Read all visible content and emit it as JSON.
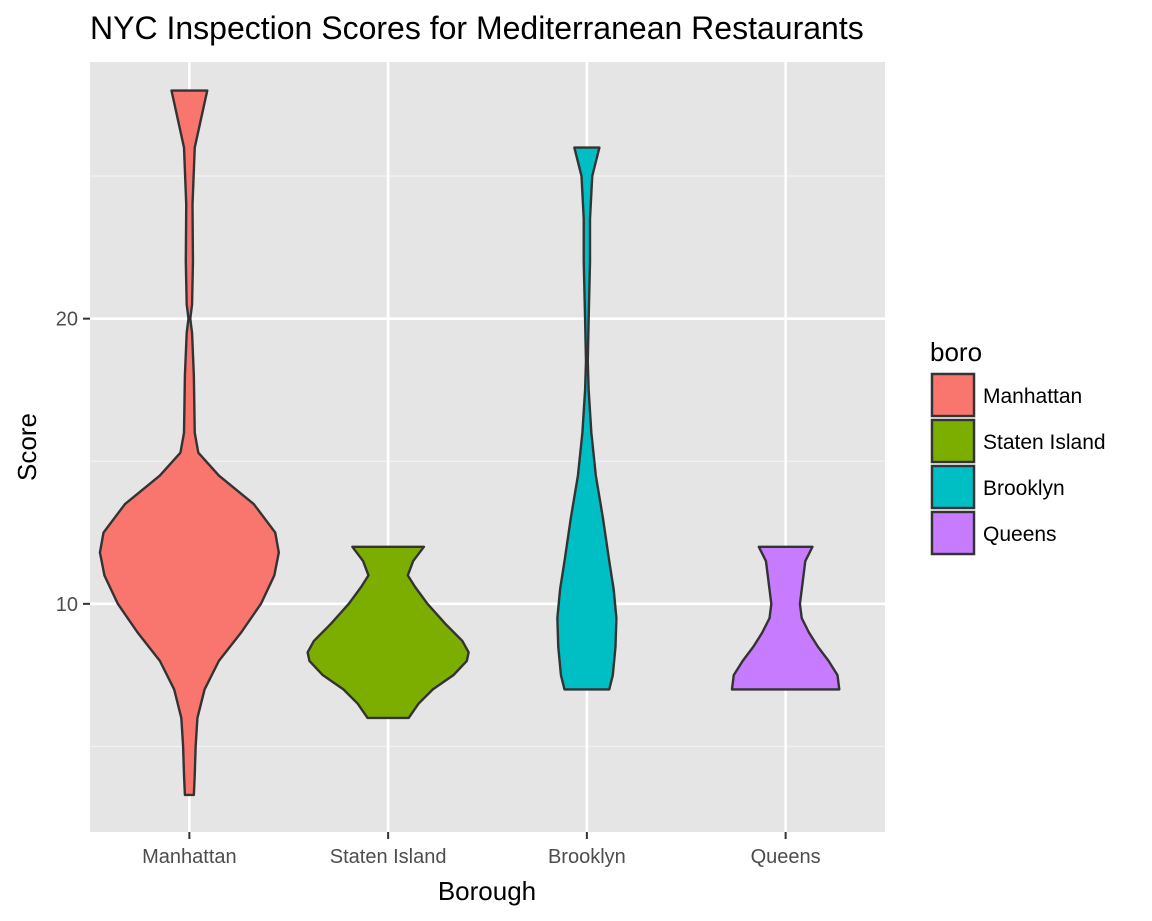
{
  "chart_data": {
    "type": "violin",
    "title": "NYC Inspection Scores for Mediterranean Restaurants",
    "xlabel": "Borough",
    "ylabel": "Score",
    "ylim": [
      2,
      29
    ],
    "y_ticks": [
      10,
      20
    ],
    "minor_y_ticks": [
      5,
      15,
      25
    ],
    "grid": true,
    "legend": {
      "title": "boro",
      "position": "right"
    },
    "categories": [
      "Manhattan",
      "Staten Island",
      "Brooklyn",
      "Queens"
    ],
    "series": [
      {
        "name": "Manhattan",
        "color": "#F8766D",
        "min": 3.3,
        "max": 28,
        "density": [
          [
            3.3,
            0.05
          ],
          [
            4,
            0.06
          ],
          [
            5,
            0.07
          ],
          [
            6,
            0.09
          ],
          [
            7,
            0.17
          ],
          [
            8,
            0.33
          ],
          [
            9,
            0.58
          ],
          [
            10,
            0.8
          ],
          [
            11,
            0.95
          ],
          [
            11.8,
            1.0
          ],
          [
            12.5,
            0.96
          ],
          [
            13.5,
            0.72
          ],
          [
            14.5,
            0.33
          ],
          [
            15.3,
            0.1
          ],
          [
            16,
            0.06
          ],
          [
            18,
            0.05
          ],
          [
            19.5,
            0.03
          ],
          [
            20,
            0.01
          ],
          [
            20.5,
            0.03
          ],
          [
            22,
            0.04
          ],
          [
            24,
            0.035
          ],
          [
            26,
            0.06
          ],
          [
            28,
            0.2
          ]
        ]
      },
      {
        "name": "Staten Island",
        "color": "#7CAE00",
        "min": 6,
        "max": 12,
        "density": [
          [
            6,
            0.23
          ],
          [
            6.5,
            0.34
          ],
          [
            7,
            0.5
          ],
          [
            7.5,
            0.73
          ],
          [
            8,
            0.88
          ],
          [
            8.3,
            0.9
          ],
          [
            8.7,
            0.83
          ],
          [
            9.3,
            0.64
          ],
          [
            10,
            0.44
          ],
          [
            10.6,
            0.3
          ],
          [
            11,
            0.22
          ],
          [
            11.5,
            0.28
          ],
          [
            12,
            0.4
          ]
        ]
      },
      {
        "name": "Brooklyn",
        "color": "#00BFC4",
        "min": 7,
        "max": 26,
        "density": [
          [
            7,
            0.25
          ],
          [
            7.5,
            0.29
          ],
          [
            8.5,
            0.32
          ],
          [
            9.5,
            0.33
          ],
          [
            10.5,
            0.3
          ],
          [
            11.5,
            0.25
          ],
          [
            13,
            0.18
          ],
          [
            14.5,
            0.1
          ],
          [
            16,
            0.05
          ],
          [
            17.5,
            0.02
          ],
          [
            18.5,
            0.01
          ],
          [
            20,
            0.02
          ],
          [
            22,
            0.035
          ],
          [
            23.5,
            0.035
          ],
          [
            25,
            0.06
          ],
          [
            26,
            0.14
          ]
        ]
      },
      {
        "name": "Queens",
        "color": "#C77CFF",
        "min": 7,
        "max": 12,
        "density": [
          [
            7,
            0.6
          ],
          [
            7.5,
            0.58
          ],
          [
            8,
            0.48
          ],
          [
            8.5,
            0.36
          ],
          [
            9,
            0.26
          ],
          [
            9.5,
            0.18
          ],
          [
            10,
            0.16
          ],
          [
            10.5,
            0.18
          ],
          [
            11,
            0.2
          ],
          [
            11.5,
            0.22
          ],
          [
            12,
            0.3
          ]
        ]
      }
    ]
  }
}
